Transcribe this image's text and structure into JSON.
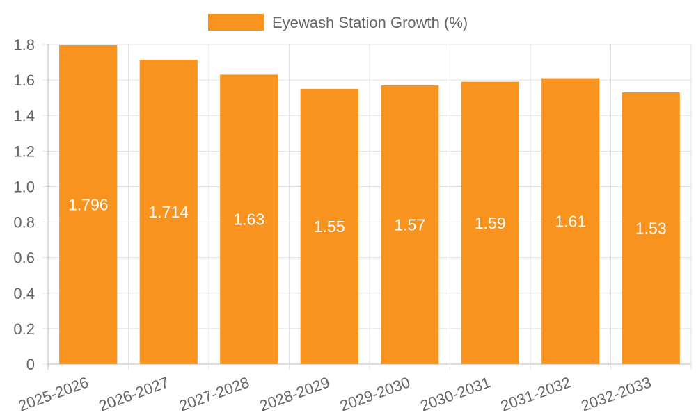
{
  "chart_data": {
    "type": "bar",
    "categories": [
      "2025-2026",
      "2026-2027",
      "2027-2028",
      "2028-2029",
      "2029-2030",
      "2030-2031",
      "2031-2032",
      "2032-2033"
    ],
    "series": [
      {
        "name": "Eyewash Station Growth (%)",
        "values": [
          1.796,
          1.714,
          1.63,
          1.55,
          1.57,
          1.59,
          1.61,
          1.53
        ],
        "data_labels": [
          "1.796",
          "1.714",
          "1.63",
          "1.55",
          "1.57",
          "1.59",
          "1.61",
          "1.53"
        ],
        "color": "#f7931e"
      }
    ],
    "ylim": [
      0,
      1.8
    ],
    "y_ticks": [
      "0",
      "0.2",
      "0.4",
      "0.6",
      "0.8",
      "1.0",
      "1.2",
      "1.4",
      "1.6",
      "1.8"
    ],
    "y_tick_values": [
      0,
      0.2,
      0.4,
      0.6,
      0.8,
      1.0,
      1.2,
      1.4,
      1.6,
      1.8
    ],
    "grid": true,
    "legend_position": "top-center",
    "xlabel": "",
    "ylabel": ""
  }
}
